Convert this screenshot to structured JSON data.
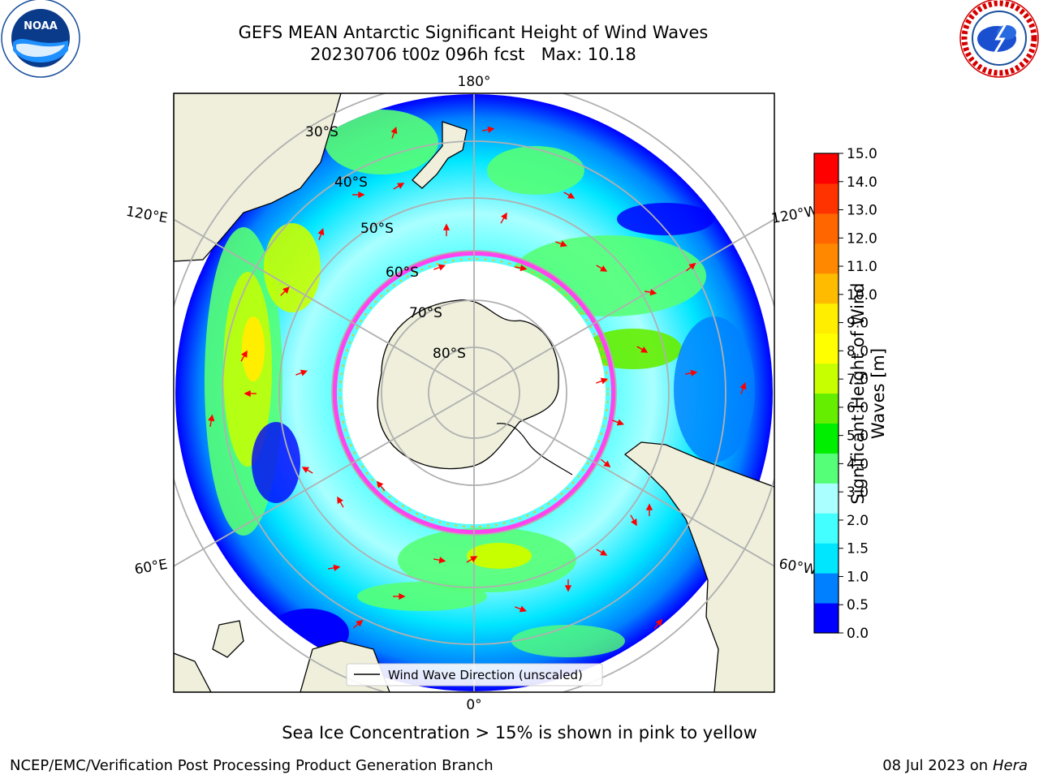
{
  "title": {
    "line1": "GEFS MEAN Antarctic Significant Height of Wind Waves",
    "line2": "20230706 t00z 096h fcst   Max: 10.18"
  },
  "logos": {
    "left": {
      "name": "NOAA",
      "text": "NOAA",
      "ring_text": "NATIONAL OCEANIC AND ATMOSPHERIC ADMINISTRATION · U.S. DEPARTMENT OF COMMERCE"
    },
    "right": {
      "name": "National Weather Service",
      "ring_text": "NATIONAL WEATHER SERVICE"
    }
  },
  "map": {
    "projection": "south-polar-stereographic",
    "lat_labels": [
      "30°S",
      "40°S",
      "50°S",
      "60°S",
      "70°S",
      "80°S"
    ],
    "lon_labels": {
      "top": "180°",
      "bottom": "0°",
      "upper_left": "120°E",
      "upper_right": "120°W",
      "lower_left": "60°E",
      "lower_right": "60°W"
    },
    "legend": "Wind Wave Direction (unscaled)",
    "arrow_color": "#ff0000"
  },
  "colorbar": {
    "title": "Significant Height of Wind Waves [m]",
    "ticks": [
      "0.0",
      "0.5",
      "1.0",
      "1.5",
      "2.0",
      "3.0",
      "4.0",
      "5.0",
      "6.0",
      "7.0",
      "8.0",
      "9.0",
      "10.0",
      "11.0",
      "12.0",
      "13.0",
      "14.0",
      "15.0"
    ],
    "colors": [
      "#0000ff",
      "#0080ff",
      "#00e6ff",
      "#44ffff",
      "#aaffff",
      "#55ff77",
      "#00ee00",
      "#66ee00",
      "#c8ff00",
      "#ffff00",
      "#ffee00",
      "#ffbb00",
      "#ff8800",
      "#ff6600",
      "#ff3300",
      "#ff0000"
    ]
  },
  "ice_note": "Sea Ice Concentration > 15% is shown in pink to yellow",
  "footer": {
    "left": "NCEP/EMC/Verification Post Processing Product Generation Branch",
    "right_date": "08 Jul 2023 on ",
    "right_machine": "Hera"
  }
}
